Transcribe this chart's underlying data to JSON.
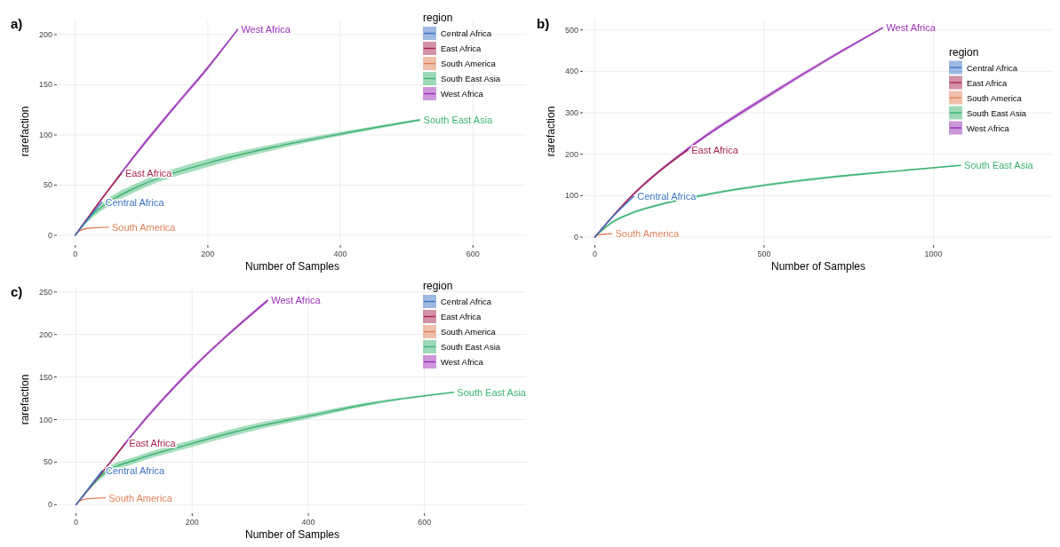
{
  "chart_data": [
    {
      "type": "line",
      "title": "a)",
      "xlabel": "Number of Samples",
      "ylabel": "rarefaction",
      "legend_title": "region",
      "legend": "top right",
      "grid": true,
      "xlim": [
        -25,
        680
      ],
      "ylim": [
        -8,
        215
      ],
      "xticks": [
        0,
        200,
        400,
        600
      ],
      "yticks": [
        0,
        50,
        100,
        150,
        200
      ],
      "series": [
        {
          "name": "Central Africa",
          "color": "#3d74c4",
          "x": [
            0,
            20,
            40
          ],
          "values": [
            0,
            17,
            33
          ]
        },
        {
          "name": "East Africa",
          "color": "#a8254f",
          "x": [
            0,
            35,
            70
          ],
          "values": [
            0,
            32,
            62
          ]
        },
        {
          "name": "South America",
          "color": "#e0815a",
          "x": [
            0,
            5,
            20,
            50
          ],
          "values": [
            0,
            4,
            7,
            8
          ]
        },
        {
          "name": "South East Asia",
          "color": "#3cb371",
          "x": [
            0,
            25,
            50,
            100,
            200,
            300,
            400,
            520
          ],
          "values": [
            0,
            20,
            33,
            50,
            72,
            88,
            101,
            115
          ],
          "lower": [
            0,
            17,
            29,
            46,
            68,
            85,
            99,
            114
          ],
          "upper": [
            0,
            23,
            37,
            54,
            76,
            91,
            103,
            116
          ]
        },
        {
          "name": "West Africa",
          "color": "#9b30b8",
          "x": [
            0,
            50,
            100,
            150,
            200,
            245
          ],
          "values": [
            0,
            45,
            88,
            128,
            167,
            205
          ],
          "lower": [
            0,
            44,
            86,
            126,
            165,
            204
          ],
          "upper": [
            0,
            46,
            90,
            130,
            169,
            206
          ]
        }
      ]
    },
    {
      "type": "line",
      "title": "b)",
      "xlabel": "Number of Samples",
      "ylabel": "rarefaction",
      "legend_title": "region",
      "legend": "right",
      "grid": true,
      "xlim": [
        -30,
        1350
      ],
      "ylim": [
        -15,
        525
      ],
      "xticks": [
        0,
        500,
        1000
      ],
      "yticks": [
        0,
        100,
        200,
        300,
        400,
        500
      ],
      "series": [
        {
          "name": "Central Africa",
          "color": "#3d74c4",
          "x": [
            0,
            60,
            115
          ],
          "values": [
            0,
            55,
            98
          ]
        },
        {
          "name": "East Africa",
          "color": "#a8254f",
          "x": [
            0,
            110,
            200,
            275
          ],
          "values": [
            0,
            100,
            165,
            210
          ]
        },
        {
          "name": "South America",
          "color": "#e0815a",
          "x": [
            0,
            10,
            50
          ],
          "values": [
            0,
            5,
            8
          ]
        },
        {
          "name": "South East Asia",
          "color": "#3cb371",
          "x": [
            0,
            50,
            100,
            200,
            300,
            500,
            700,
            900,
            1080
          ],
          "values": [
            0,
            35,
            55,
            80,
            98,
            125,
            145,
            160,
            173
          ],
          "lower": [
            0,
            32,
            52,
            77,
            95,
            122,
            142,
            158,
            172
          ],
          "upper": [
            0,
            38,
            58,
            83,
            101,
            128,
            148,
            162,
            174
          ]
        },
        {
          "name": "West Africa",
          "color": "#9b30b8",
          "x": [
            0,
            110,
            275,
            500,
            700,
            850
          ],
          "values": [
            0,
            100,
            213,
            335,
            435,
            505
          ],
          "lower": [
            0,
            97,
            209,
            330,
            431,
            503
          ],
          "upper": [
            0,
            103,
            217,
            340,
            439,
            507
          ]
        }
      ]
    },
    {
      "type": "line",
      "title": "c)",
      "xlabel": "Number of Samples",
      "ylabel": "rarefaction",
      "legend_title": "region",
      "legend": "top right",
      "grid": true,
      "xlim": [
        -30,
        775
      ],
      "ylim": [
        -8,
        255
      ],
      "xticks": [
        0,
        200,
        400,
        600
      ],
      "yticks": [
        0,
        50,
        100,
        150,
        200,
        250
      ],
      "series": [
        {
          "name": "Central Africa",
          "color": "#3d74c4",
          "x": [
            0,
            25,
            45
          ],
          "values": [
            0,
            22,
            40
          ]
        },
        {
          "name": "East Africa",
          "color": "#a8254f",
          "x": [
            0,
            45,
            85
          ],
          "values": [
            0,
            38,
            72
          ]
        },
        {
          "name": "South America",
          "color": "#e0815a",
          "x": [
            0,
            5,
            20,
            50
          ],
          "values": [
            0,
            4,
            7,
            8
          ]
        },
        {
          "name": "South East Asia",
          "color": "#3cb371",
          "x": [
            0,
            50,
            100,
            200,
            300,
            400,
            500,
            650
          ],
          "values": [
            0,
            38,
            52,
            72,
            90,
            104,
            118,
            132
          ],
          "lower": [
            0,
            34,
            48,
            68,
            86,
            101,
            116,
            131
          ],
          "upper": [
            0,
            42,
            56,
            76,
            94,
            107,
            120,
            133
          ]
        },
        {
          "name": "West Africa",
          "color": "#9b30b8",
          "x": [
            0,
            50,
            100,
            200,
            330
          ],
          "values": [
            0,
            42,
            85,
            160,
            240
          ],
          "lower": [
            0,
            41,
            83,
            158,
            238
          ],
          "upper": [
            0,
            43,
            87,
            162,
            242
          ]
        }
      ]
    }
  ]
}
